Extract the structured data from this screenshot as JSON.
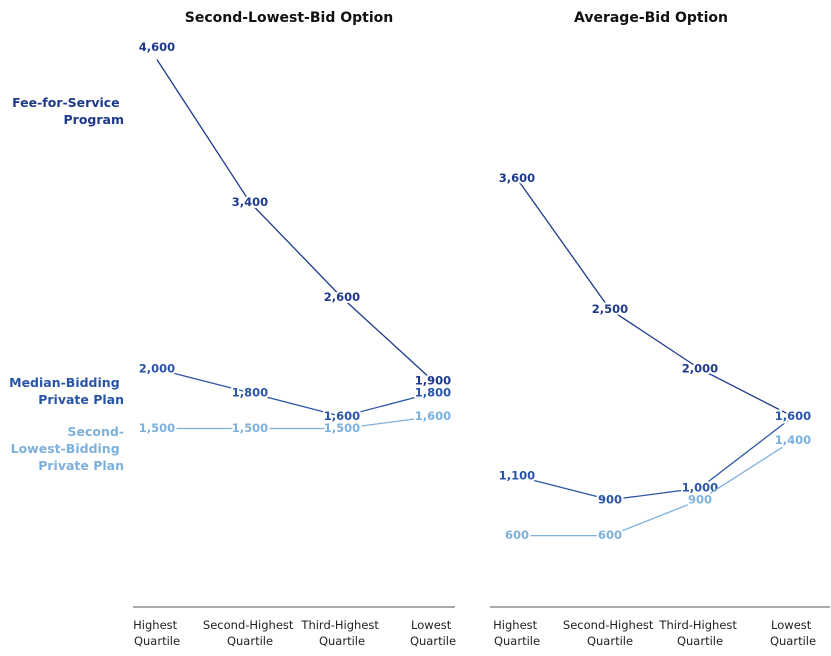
{
  "chart_data": [
    {
      "type": "line",
      "title": "Second-Lowest-Bid Option",
      "categories": [
        "Highest Quartile",
        "Second-Highest Quartile",
        "Third-Highest Quartile",
        "Lowest Quartile"
      ],
      "ylim": [
        0,
        5000
      ],
      "series": [
        {
          "name": "Fee-for-Service Program",
          "color": "#1f3a8a",
          "values": [
            4600,
            3400,
            2600,
            1900
          ],
          "value_labels": [
            "4,600",
            "3,400",
            "2,600",
            "1,900"
          ]
        },
        {
          "name": "Median-Bidding Private Plan",
          "color": "#2a55a5",
          "values": [
            2000,
            1800,
            1600,
            1800
          ],
          "value_labels": [
            "2,000",
            "1,800",
            "1,600",
            "1,800"
          ]
        },
        {
          "name": "Second-Lowest-Bidding Private Plan",
          "color": "#7eb0dc",
          "values": [
            1500,
            1500,
            1500,
            1600
          ],
          "value_labels": [
            "1,500",
            "1,500",
            "1,500",
            "1,600"
          ]
        }
      ]
    },
    {
      "type": "line",
      "title": "Average-Bid Option",
      "categories": [
        "Highest Quartile",
        "Second-Highest Quartile",
        "Third-Highest Quartile",
        "Lowest Quartile"
      ],
      "ylim": [
        0,
        5000
      ],
      "series": [
        {
          "color": "#1f3a8a",
          "values": [
            3600,
            2500,
            2000,
            1600
          ],
          "value_labels": [
            "3,600",
            "2,500",
            "2,000",
            "1,600"
          ]
        },
        {
          "color": "#2a55a5",
          "values": [
            1100,
            900,
            1000,
            1600
          ],
          "value_labels": [
            "1,100",
            "900",
            "1,000",
            "1,600"
          ]
        },
        {
          "color": "#7eb0dc",
          "values": [
            600,
            600,
            900,
            1400
          ],
          "value_labels": [
            "600",
            "600",
            "900",
            "1,400"
          ]
        }
      ]
    }
  ]
}
